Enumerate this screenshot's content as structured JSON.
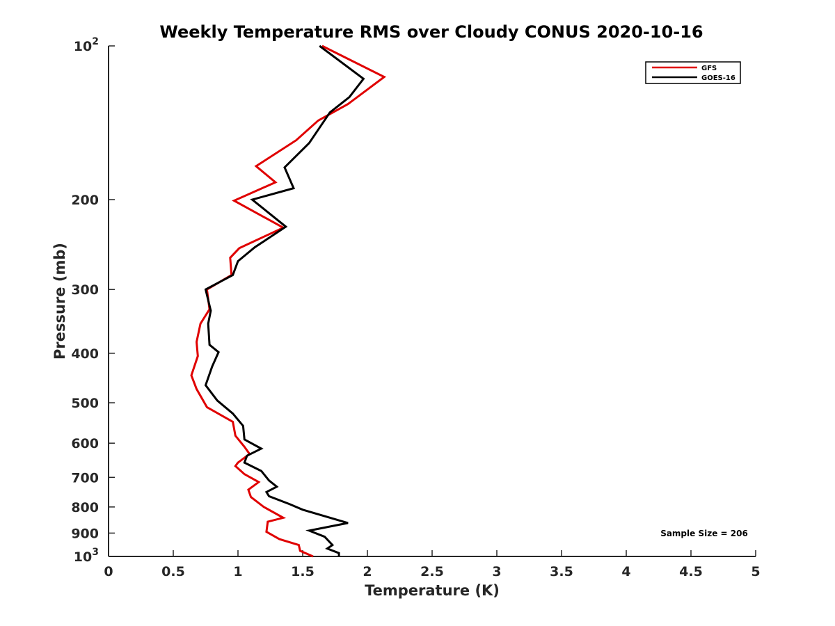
{
  "chart_data": {
    "type": "line",
    "title": "Weekly Temperature RMS over Cloudy CONUS 2020-10-16",
    "xlabel": "Temperature (K)",
    "ylabel": "Pressure (mb)",
    "xlim": [
      0,
      5
    ],
    "ylim": [
      100,
      1000
    ],
    "y_scale": "log",
    "y_reversed": true,
    "x_ticks": [
      {
        "value": 0,
        "label": "0"
      },
      {
        "value": 0.5,
        "label": "0.5"
      },
      {
        "value": 1,
        "label": "1"
      },
      {
        "value": 1.5,
        "label": "1.5"
      },
      {
        "value": 2,
        "label": "2"
      },
      {
        "value": 2.5,
        "label": "2.5"
      },
      {
        "value": 3,
        "label": "3"
      },
      {
        "value": 3.5,
        "label": "3.5"
      },
      {
        "value": 4,
        "label": "4"
      },
      {
        "value": 4.5,
        "label": "4.5"
      },
      {
        "value": 5,
        "label": "5"
      }
    ],
    "y_ticks": [
      {
        "value": 100,
        "label": "10",
        "sup": "2"
      },
      {
        "value": 200,
        "label": "200",
        "sup": ""
      },
      {
        "value": 300,
        "label": "300",
        "sup": ""
      },
      {
        "value": 400,
        "label": "400",
        "sup": ""
      },
      {
        "value": 500,
        "label": "500",
        "sup": ""
      },
      {
        "value": 600,
        "label": "600",
        "sup": ""
      },
      {
        "value": 700,
        "label": "700",
        "sup": ""
      },
      {
        "value": 800,
        "label": "800",
        "sup": ""
      },
      {
        "value": 900,
        "label": "900",
        "sup": ""
      },
      {
        "value": 1000,
        "label": "10",
        "sup": "3"
      }
    ],
    "grid": false,
    "legend_position": "top-right",
    "annotation": "Sample Size = 206",
    "series": [
      {
        "name": "GFS",
        "color": "#e00000",
        "points": [
          {
            "x": 1.65,
            "y": 100
          },
          {
            "x": 2.13,
            "y": 115
          },
          {
            "x": 1.85,
            "y": 130
          },
          {
            "x": 1.62,
            "y": 140
          },
          {
            "x": 1.45,
            "y": 153
          },
          {
            "x": 1.14,
            "y": 172
          },
          {
            "x": 1.29,
            "y": 185
          },
          {
            "x": 0.97,
            "y": 201
          },
          {
            "x": 1.35,
            "y": 227
          },
          {
            "x": 1.01,
            "y": 249
          },
          {
            "x": 0.94,
            "y": 260
          },
          {
            "x": 0.95,
            "y": 281
          },
          {
            "x": 0.76,
            "y": 300
          },
          {
            "x": 0.78,
            "y": 328
          },
          {
            "x": 0.71,
            "y": 350
          },
          {
            "x": 0.68,
            "y": 380
          },
          {
            "x": 0.69,
            "y": 405
          },
          {
            "x": 0.64,
            "y": 442
          },
          {
            "x": 0.68,
            "y": 470
          },
          {
            "x": 0.76,
            "y": 510
          },
          {
            "x": 0.96,
            "y": 545
          },
          {
            "x": 0.98,
            "y": 580
          },
          {
            "x": 1.05,
            "y": 610
          },
          {
            "x": 1.09,
            "y": 630
          },
          {
            "x": 1.0,
            "y": 655
          },
          {
            "x": 0.98,
            "y": 665
          },
          {
            "x": 1.05,
            "y": 690
          },
          {
            "x": 1.16,
            "y": 715
          },
          {
            "x": 1.08,
            "y": 740
          },
          {
            "x": 1.1,
            "y": 765
          },
          {
            "x": 1.2,
            "y": 800
          },
          {
            "x": 1.35,
            "y": 840
          },
          {
            "x": 1.23,
            "y": 855
          },
          {
            "x": 1.22,
            "y": 895
          },
          {
            "x": 1.32,
            "y": 925
          },
          {
            "x": 1.47,
            "y": 950
          },
          {
            "x": 1.48,
            "y": 975
          },
          {
            "x": 1.58,
            "y": 1000
          }
        ]
      },
      {
        "name": "GOES-16",
        "color": "#000000",
        "points": [
          {
            "x": 1.63,
            "y": 100
          },
          {
            "x": 1.97,
            "y": 116
          },
          {
            "x": 1.86,
            "y": 126
          },
          {
            "x": 1.71,
            "y": 135
          },
          {
            "x": 1.55,
            "y": 155
          },
          {
            "x": 1.36,
            "y": 173
          },
          {
            "x": 1.43,
            "y": 190
          },
          {
            "x": 1.11,
            "y": 200
          },
          {
            "x": 1.37,
            "y": 226
          },
          {
            "x": 1.13,
            "y": 248
          },
          {
            "x": 1.0,
            "y": 264
          },
          {
            "x": 0.96,
            "y": 281
          },
          {
            "x": 0.75,
            "y": 300
          },
          {
            "x": 0.79,
            "y": 330
          },
          {
            "x": 0.77,
            "y": 350
          },
          {
            "x": 0.78,
            "y": 385
          },
          {
            "x": 0.85,
            "y": 398
          },
          {
            "x": 0.8,
            "y": 425
          },
          {
            "x": 0.75,
            "y": 462
          },
          {
            "x": 0.84,
            "y": 495
          },
          {
            "x": 0.96,
            "y": 525
          },
          {
            "x": 1.04,
            "y": 555
          },
          {
            "x": 1.05,
            "y": 590
          },
          {
            "x": 1.18,
            "y": 615
          },
          {
            "x": 1.07,
            "y": 635
          },
          {
            "x": 1.05,
            "y": 655
          },
          {
            "x": 1.18,
            "y": 680
          },
          {
            "x": 1.24,
            "y": 710
          },
          {
            "x": 1.3,
            "y": 730
          },
          {
            "x": 1.22,
            "y": 748
          },
          {
            "x": 1.24,
            "y": 762
          },
          {
            "x": 1.4,
            "y": 790
          },
          {
            "x": 1.5,
            "y": 810
          },
          {
            "x": 1.85,
            "y": 860
          },
          {
            "x": 1.55,
            "y": 890
          },
          {
            "x": 1.67,
            "y": 915
          },
          {
            "x": 1.73,
            "y": 950
          },
          {
            "x": 1.69,
            "y": 965
          },
          {
            "x": 1.78,
            "y": 985
          },
          {
            "x": 1.78,
            "y": 1000
          }
        ]
      }
    ]
  }
}
